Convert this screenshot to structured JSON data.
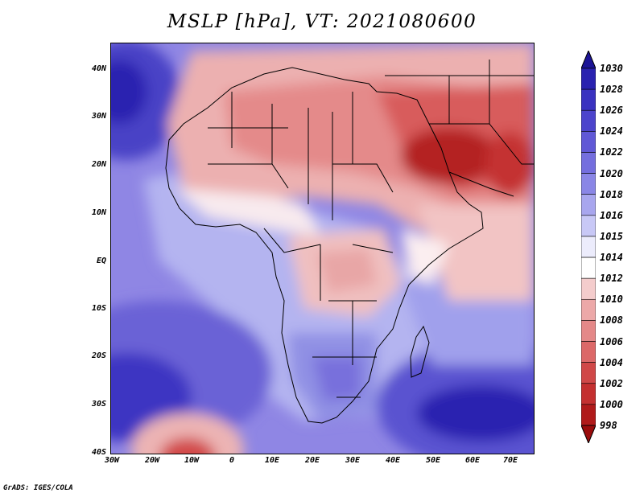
{
  "title": "MSLP [hPa], VT: 2021080600",
  "credit": "GrADS: IGES/COLA",
  "axes": {
    "lat_labels": [
      "40N",
      "30N",
      "20N",
      "10N",
      "EQ",
      "10S",
      "20S",
      "30S",
      "40S"
    ],
    "lon_labels": [
      "30W",
      "20W",
      "10W",
      "0",
      "10E",
      "20E",
      "30E",
      "40E",
      "50E",
      "60E",
      "70E"
    ]
  },
  "colorbar": {
    "levels": [
      "1030",
      "1028",
      "1026",
      "1024",
      "1022",
      "1020",
      "1018",
      "1016",
      "1015",
      "1014",
      "1012",
      "1010",
      "1008",
      "1006",
      "1004",
      "1002",
      "1000",
      "998"
    ],
    "colors": [
      "#1c1496",
      "#2a22b0",
      "#3a32c0",
      "#4c44cc",
      "#6058d6",
      "#746ede",
      "#8a86e6",
      "#a8a6ee",
      "#c8c8f6",
      "#ececfc",
      "#ffffff",
      "#f4cccc",
      "#eca8a8",
      "#e48888",
      "#dc6868",
      "#d04848",
      "#c43030",
      "#b01a1a",
      "#9a0c0c"
    ]
  }
}
